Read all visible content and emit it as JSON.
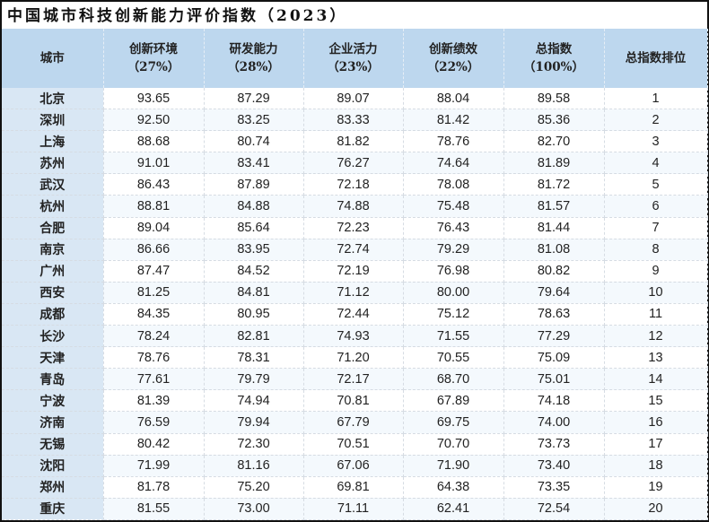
{
  "title": "中国城市科技创新能力评价指数（2023）",
  "headers": [
    {
      "line1": "城市",
      "line2": ""
    },
    {
      "line1": "创新环境",
      "line2": "（27%）"
    },
    {
      "line1": "研发能力",
      "line2": "（28%）"
    },
    {
      "line1": "企业活力",
      "line2": "（23%）"
    },
    {
      "line1": "创新绩效",
      "line2": "（22%）"
    },
    {
      "line1": "总指数",
      "line2": "（100%）"
    },
    {
      "line1": "总指数排位",
      "line2": ""
    }
  ],
  "rows": [
    [
      "北京",
      "93.65",
      "87.29",
      "89.07",
      "88.04",
      "89.58",
      "1"
    ],
    [
      "深圳",
      "92.50",
      "83.25",
      "83.33",
      "81.42",
      "85.36",
      "2"
    ],
    [
      "上海",
      "88.68",
      "80.74",
      "81.82",
      "78.76",
      "82.70",
      "3"
    ],
    [
      "苏州",
      "91.01",
      "83.41",
      "76.27",
      "74.64",
      "81.89",
      "4"
    ],
    [
      "武汉",
      "86.43",
      "87.89",
      "72.18",
      "78.08",
      "81.72",
      "5"
    ],
    [
      "杭州",
      "88.81",
      "84.88",
      "74.88",
      "75.48",
      "81.57",
      "6"
    ],
    [
      "合肥",
      "89.04",
      "85.64",
      "72.23",
      "76.43",
      "81.44",
      "7"
    ],
    [
      "南京",
      "86.66",
      "83.95",
      "72.74",
      "79.29",
      "81.08",
      "8"
    ],
    [
      "广州",
      "87.47",
      "84.52",
      "72.19",
      "76.98",
      "80.82",
      "9"
    ],
    [
      "西安",
      "81.25",
      "84.81",
      "71.12",
      "80.00",
      "79.64",
      "10"
    ],
    [
      "成都",
      "84.35",
      "80.95",
      "72.44",
      "75.12",
      "78.63",
      "11"
    ],
    [
      "长沙",
      "78.24",
      "82.81",
      "74.93",
      "71.55",
      "77.29",
      "12"
    ],
    [
      "天津",
      "78.76",
      "78.31",
      "71.20",
      "70.55",
      "75.09",
      "13"
    ],
    [
      "青岛",
      "77.61",
      "79.79",
      "72.17",
      "68.70",
      "75.01",
      "14"
    ],
    [
      "宁波",
      "81.39",
      "74.94",
      "70.81",
      "67.89",
      "74.18",
      "15"
    ],
    [
      "济南",
      "76.59",
      "79.94",
      "67.79",
      "69.75",
      "74.00",
      "16"
    ],
    [
      "无锡",
      "80.42",
      "72.30",
      "70.51",
      "70.70",
      "73.73",
      "17"
    ],
    [
      "沈阳",
      "71.99",
      "81.16",
      "67.06",
      "71.90",
      "73.40",
      "18"
    ],
    [
      "郑州",
      "81.78",
      "75.20",
      "69.81",
      "64.38",
      "73.35",
      "19"
    ],
    [
      "重庆",
      "81.55",
      "73.00",
      "71.11",
      "62.41",
      "72.54",
      "20"
    ]
  ],
  "colors": {
    "header_bg": "#bdd7ee",
    "city_bg": "#d9e7f4",
    "border": "#111111"
  }
}
